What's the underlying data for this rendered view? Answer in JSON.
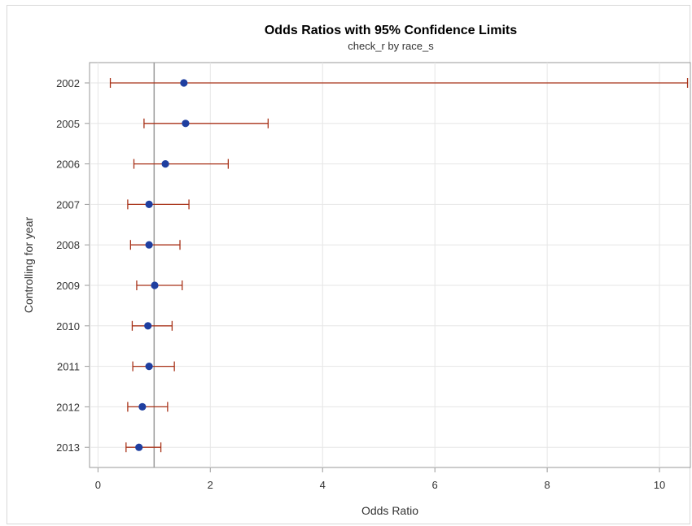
{
  "chart_data": {
    "type": "scatter",
    "title": "Odds Ratios with 95% Confidence Limits",
    "subtitle": "check_r by race_s",
    "xlabel": "Odds Ratio",
    "ylabel": "Controlling for year",
    "xlim": [
      -0.15,
      10.55
    ],
    "xticks": [
      0,
      2,
      4,
      6,
      8,
      10
    ],
    "reference_line": 1,
    "grid": true,
    "colors": {
      "point": "#1f3fa0",
      "interval": "#a83218",
      "reference": "#9a9a9a",
      "grid": "#e6e6e6",
      "axis": "#9a9a9a"
    },
    "rows": [
      {
        "label": "2002",
        "or": 1.53,
        "lower": 0.22,
        "upper": 10.5
      },
      {
        "label": "2005",
        "or": 1.56,
        "lower": 0.82,
        "upper": 3.03
      },
      {
        "label": "2006",
        "or": 1.2,
        "lower": 0.64,
        "upper": 2.32
      },
      {
        "label": "2007",
        "or": 0.91,
        "lower": 0.53,
        "upper": 1.62
      },
      {
        "label": "2008",
        "or": 0.91,
        "lower": 0.58,
        "upper": 1.46
      },
      {
        "label": "2009",
        "or": 1.01,
        "lower": 0.69,
        "upper": 1.5
      },
      {
        "label": "2010",
        "or": 0.89,
        "lower": 0.61,
        "upper": 1.32
      },
      {
        "label": "2011",
        "or": 0.91,
        "lower": 0.62,
        "upper": 1.36
      },
      {
        "label": "2012",
        "or": 0.79,
        "lower": 0.53,
        "upper": 1.24
      },
      {
        "label": "2013",
        "or": 0.73,
        "lower": 0.5,
        "upper": 1.12
      }
    ]
  }
}
